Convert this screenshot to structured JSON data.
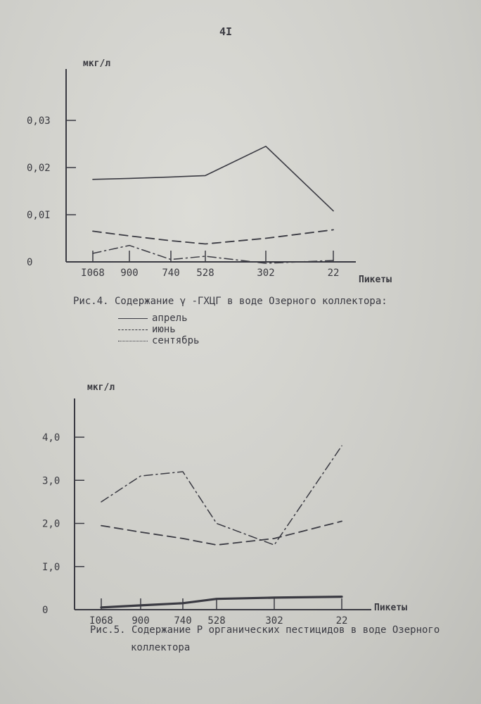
{
  "page_number": "4I",
  "figure4": {
    "caption": "Рис.4. Содержание γ -ГХЦГ в воде Озерного коллектора:",
    "legend": [
      {
        "label": "апрель",
        "dash": "solid"
      },
      {
        "label": "июнь",
        "dash": "dashed"
      },
      {
        "label": "сентябрь",
        "dash": "dashdot"
      }
    ]
  },
  "figure5": {
    "caption_line1": "Рис.5. Содержание Р органических пестицидов в воде Озерного",
    "caption_line2": "коллектора"
  },
  "chart_data": [
    {
      "type": "line",
      "ylabel": "мкг/л",
      "xlabel": "Пикеты",
      "x": [
        "I068",
        "900",
        "740",
        "528",
        "302",
        "22"
      ],
      "y_ticks": [
        "0",
        "0,0I",
        "0,02",
        "0,03"
      ],
      "ylim": [
        0,
        0.04
      ],
      "series": [
        {
          "name": "апрель",
          "dash": "solid",
          "values": [
            0.0175,
            0.0177,
            0.018,
            0.0183,
            0.0245,
            0.0108
          ]
        },
        {
          "name": "июнь",
          "dash": "dashed",
          "values": [
            0.0065,
            0.0055,
            0.0045,
            0.0038,
            0.005,
            0.0068
          ]
        },
        {
          "name": "сентябрь",
          "dash": "dashdot",
          "values": [
            0.0018,
            0.0035,
            0.0005,
            0.0012,
            -0.0003,
            0.0003
          ]
        }
      ]
    },
    {
      "type": "line",
      "ylabel": "мкг/л",
      "xlabel": "Пикеты",
      "x": [
        "I068",
        "900",
        "740",
        "528",
        "302",
        "22"
      ],
      "y_ticks": [
        "0",
        "I,0",
        "2,0",
        "3,0",
        "4,0"
      ],
      "ylim": [
        0,
        4.8
      ],
      "series": [
        {
          "dash": "dashdot",
          "values": [
            2.5,
            3.1,
            3.2,
            2.0,
            1.5,
            3.8
          ]
        },
        {
          "dash": "dashed",
          "values": [
            1.95,
            1.8,
            1.65,
            1.5,
            1.65,
            2.05
          ]
        },
        {
          "dash": "solid-thick",
          "values": [
            0.05,
            0.1,
            0.15,
            0.25,
            0.28,
            0.3
          ]
        }
      ]
    }
  ]
}
